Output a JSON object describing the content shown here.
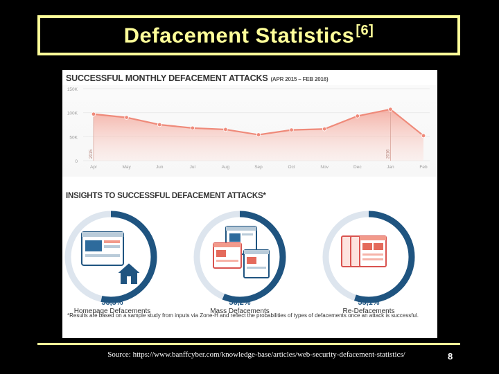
{
  "slide": {
    "title": "Defacement Statistics",
    "title_ref": "[6]",
    "source": "Source: https://www.banffcyber.com/knowledge-base/articles/web-security-defacement-statistics/",
    "page_number": "8"
  },
  "infographic": {
    "chart_title": "SUCCESSFUL MONTHLY DEFACEMENT ATTACKS",
    "chart_subtitle": "(APR 2015 – FEB 2016)",
    "insights_title": "INSIGHTS TO SUCCESSFUL DEFACEMENT ATTACKS*",
    "footnote": "*Results are based on a sample study from inputs via Zone-H and reflect the probabilities of types of defacements once an attack is successful.",
    "stats": [
      {
        "percent": "53,5%",
        "label": "Homepage Defacements",
        "value": 53.5
      },
      {
        "percent": "56,2%",
        "label": "Mass Defacements",
        "value": 56.2
      },
      {
        "percent": "55,1%",
        "label": "Re-Defacements",
        "value": 55.1
      }
    ]
  },
  "colors": {
    "accent_yellow": "#ffff99",
    "line_red": "#ef8a7a",
    "fill_red": "#f6b3a8",
    "ring_blue": "#1f5480",
    "ring_light": "#dde5ee"
  },
  "chart_data": {
    "type": "area",
    "title": "SUCCESSFUL MONTHLY DEFACEMENT ATTACKS",
    "subtitle": "(APR 2015 – FEB 2016)",
    "categories": [
      "Apr",
      "May",
      "Jun",
      "Jul",
      "Aug",
      "Sep",
      "Oct",
      "Nov",
      "Dec",
      "Jan",
      "Feb"
    ],
    "values": [
      97,
      90,
      75,
      68,
      65,
      54,
      64,
      66,
      93,
      107,
      52
    ],
    "yticks": [
      "0",
      "50K",
      "100K",
      "150K"
    ],
    "ylim": [
      0,
      150
    ],
    "year_markers": [
      {
        "label": "2015",
        "index": 0
      },
      {
        "label": "2016",
        "index": 9
      }
    ],
    "xlabel": "",
    "ylabel": ""
  }
}
